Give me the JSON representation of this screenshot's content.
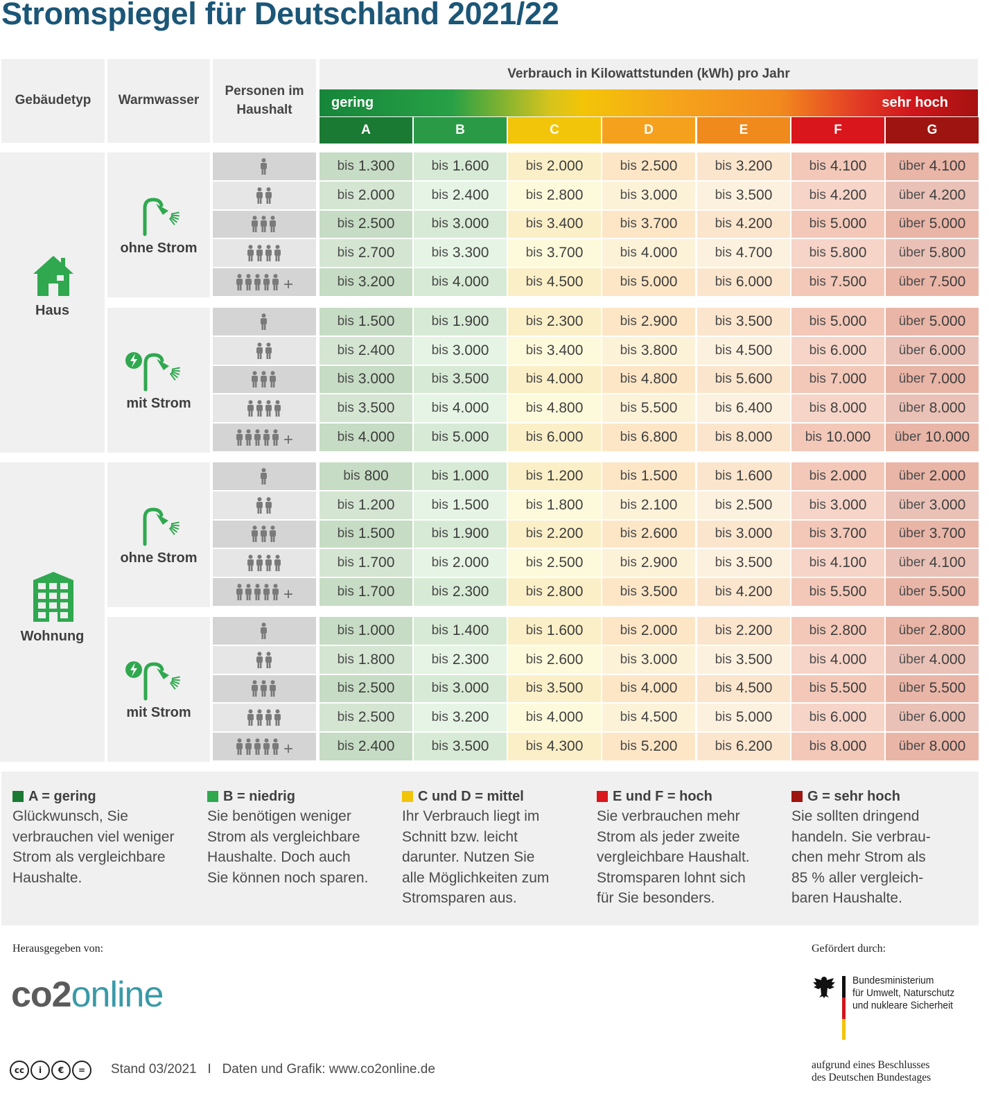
{
  "title": "Stromspiegel für Deutschland 2021/22",
  "header": {
    "col_building": "Gebäudetyp",
    "col_water": "Warmwasser",
    "col_persons_1": "Personen im",
    "col_persons_2": "Haushalt",
    "scale_caption": "Verbrauch in Kilowattstunden (kWh) pro Jahr",
    "scale_low": "gering",
    "scale_high": "sehr hoch"
  },
  "classes": [
    "A",
    "B",
    "C",
    "D",
    "E",
    "F",
    "G"
  ],
  "colors": {
    "class_heads": [
      "#1a7a33",
      "#2a9a47",
      "#f2c40a",
      "#f5a11e",
      "#f08a1c",
      "#d9161c",
      "#9e1410"
    ],
    "cell_tints": [
      "#c6dcc4",
      "#d7ead5",
      "#fbefc7",
      "#fde6c6",
      "#fbe5cd",
      "#f3c8b8",
      "#e9b5a7"
    ],
    "icon_green": "#2fa84f",
    "title_blue": "#1b5677",
    "band_bg": "#f0f0f0"
  },
  "groups": [
    {
      "building": "Haus",
      "building_icon": "house-icon",
      "subgroups": [
        {
          "water": "ohne Strom",
          "water_icon": "shower-icon",
          "rows": [
            {
              "persons": 1,
              "values": [
                "1.300",
                "1.600",
                "2.000",
                "2.500",
                "3.200",
                "4.100",
                "4.100"
              ]
            },
            {
              "persons": 2,
              "values": [
                "2.000",
                "2.400",
                "2.800",
                "3.000",
                "3.500",
                "4.200",
                "4.200"
              ]
            },
            {
              "persons": 3,
              "values": [
                "2.500",
                "3.000",
                "3.400",
                "3.700",
                "4.200",
                "5.000",
                "5.000"
              ]
            },
            {
              "persons": 4,
              "values": [
                "2.700",
                "3.300",
                "3.700",
                "4.000",
                "4.700",
                "5.800",
                "5.800"
              ]
            },
            {
              "persons": 5,
              "values": [
                "3.200",
                "4.000",
                "4.500",
                "5.000",
                "6.000",
                "7.500",
                "7.500"
              ]
            }
          ]
        },
        {
          "water": "mit Strom",
          "water_icon": "electric-shower-icon",
          "rows": [
            {
              "persons": 1,
              "values": [
                "1.500",
                "1.900",
                "2.300",
                "2.900",
                "3.500",
                "5.000",
                "5.000"
              ]
            },
            {
              "persons": 2,
              "values": [
                "2.400",
                "3.000",
                "3.400",
                "3.800",
                "4.500",
                "6.000",
                "6.000"
              ]
            },
            {
              "persons": 3,
              "values": [
                "3.000",
                "3.500",
                "4.000",
                "4.800",
                "5.600",
                "7.000",
                "7.000"
              ]
            },
            {
              "persons": 4,
              "values": [
                "3.500",
                "4.000",
                "4.800",
                "5.500",
                "6.400",
                "8.000",
                "8.000"
              ]
            },
            {
              "persons": 5,
              "values": [
                "4.000",
                "5.000",
                "6.000",
                "6.800",
                "8.000",
                "10.000",
                "10.000"
              ]
            }
          ]
        }
      ]
    },
    {
      "building": "Wohnung",
      "building_icon": "apartment-building-icon",
      "subgroups": [
        {
          "water": "ohne Strom",
          "water_icon": "shower-icon",
          "rows": [
            {
              "persons": 1,
              "values": [
                "800",
                "1.000",
                "1.200",
                "1.500",
                "1.600",
                "2.000",
                "2.000"
              ]
            },
            {
              "persons": 2,
              "values": [
                "1.200",
                "1.500",
                "1.800",
                "2.100",
                "2.500",
                "3.000",
                "3.000"
              ]
            },
            {
              "persons": 3,
              "values": [
                "1.500",
                "1.900",
                "2.200",
                "2.600",
                "3.000",
                "3.700",
                "3.700"
              ]
            },
            {
              "persons": 4,
              "values": [
                "1.700",
                "2.000",
                "2.500",
                "2.900",
                "3.500",
                "4.100",
                "4.100"
              ]
            },
            {
              "persons": 5,
              "values": [
                "1.700",
                "2.300",
                "2.800",
                "3.500",
                "4.200",
                "5.500",
                "5.500"
              ]
            }
          ]
        },
        {
          "water": "mit Strom",
          "water_icon": "electric-shower-icon",
          "rows": [
            {
              "persons": 1,
              "values": [
                "1.000",
                "1.400",
                "1.600",
                "2.000",
                "2.200",
                "2.800",
                "2.800"
              ]
            },
            {
              "persons": 2,
              "values": [
                "1.800",
                "2.300",
                "2.600",
                "3.000",
                "3.500",
                "4.000",
                "4.000"
              ]
            },
            {
              "persons": 3,
              "values": [
                "2.500",
                "3.000",
                "3.500",
                "4.000",
                "4.500",
                "5.500",
                "5.500"
              ]
            },
            {
              "persons": 4,
              "values": [
                "2.500",
                "3.200",
                "4.000",
                "4.500",
                "5.000",
                "6.000",
                "6.000"
              ]
            },
            {
              "persons": 5,
              "values": [
                "2.400",
                "3.500",
                "4.300",
                "5.200",
                "6.200",
                "8.000",
                "8.000"
              ]
            }
          ]
        }
      ]
    }
  ],
  "prefix_bis": "bis",
  "prefix_ueber": "über",
  "plus_sign": "+",
  "legend": [
    {
      "title": "A = gering",
      "color": "#1a7a33",
      "lines": [
        "Glückwunsch, Sie",
        "verbrauchen viel weniger",
        "Strom als vergleichbare",
        "Haushalte."
      ]
    },
    {
      "title": "B = niedrig",
      "color": "#2fa84f",
      "lines": [
        "Sie benötigen weniger",
        "Strom als vergleichbare",
        "Haushalte. Doch auch",
        "Sie können noch sparen."
      ]
    },
    {
      "title": "C und D = mittel",
      "color": "#f2c40a",
      "lines": [
        "Ihr Verbrauch liegt im",
        "Schnitt bzw. leicht",
        "darunter. Nutzen Sie",
        "alle Möglichkeiten zum",
        "Stromsparen aus."
      ]
    },
    {
      "title": "E und F = hoch",
      "color": "#d9161c",
      "lines": [
        "Sie verbrauchen mehr",
        "Strom als jeder zweite",
        "vergleichbare Haushalt.",
        "Stromsparen lohnt sich",
        "für Sie besonders."
      ]
    },
    {
      "title": "G = sehr hoch",
      "color": "#9e1410",
      "lines": [
        "Sie sollten dringend",
        "handeln. Sie verbrau-",
        "chen mehr Strom als",
        "85 % aller vergleich-",
        "baren Haushalte."
      ]
    }
  ],
  "publisher": {
    "label": "Herausgegeben von:",
    "logo_co2": "co2",
    "logo_online": "online"
  },
  "sponsor": {
    "label": "Gefördert durch:",
    "ministry_lines": [
      "Bundesministerium",
      "für Umwelt, Naturschutz",
      "und nukleare Sicherheit"
    ],
    "note_lines": [
      "aufgrund eines Beschlusses",
      "des Deutschen Bundestages"
    ],
    "eagle_icon": "federal-eagle-icon"
  },
  "footer": {
    "license_icons": [
      "cc-icon",
      "by-icon",
      "nc-icon",
      "nd-icon"
    ],
    "license_glyphs": [
      "cc",
      "i",
      "€",
      "="
    ],
    "text": "Stand 03/2021   I   Daten und Grafik: www.co2online.de"
  }
}
